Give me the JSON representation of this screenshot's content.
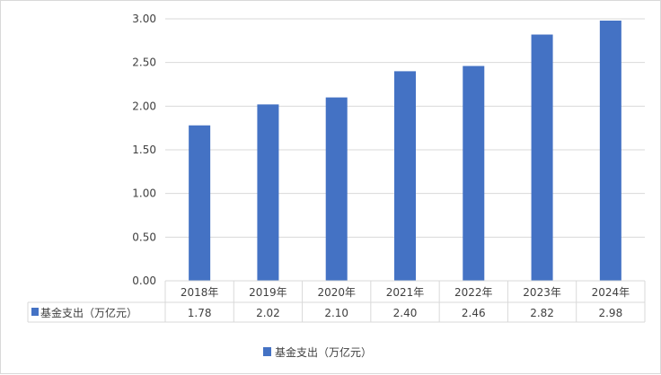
{
  "chart_data": {
    "type": "bar",
    "categories": [
      "2018年",
      "2019年",
      "2020年",
      "2021年",
      "2022年",
      "2023年",
      "2024年"
    ],
    "series": [
      {
        "name": "基金支出（万亿元）",
        "values": [
          1.78,
          2.02,
          2.1,
          2.4,
          2.46,
          2.82,
          2.98
        ],
        "value_labels": [
          "1.78",
          "2.02",
          "2.10",
          "2.40",
          "2.46",
          "2.82",
          "2.98"
        ],
        "color": "#4472C4"
      }
    ],
    "ylim": [
      0,
      3.0
    ],
    "yticks": [
      "0.00",
      "0.50",
      "1.00",
      "1.50",
      "2.00",
      "2.50",
      "3.00"
    ],
    "grid": true,
    "data_table": true,
    "legend": "bottom"
  }
}
